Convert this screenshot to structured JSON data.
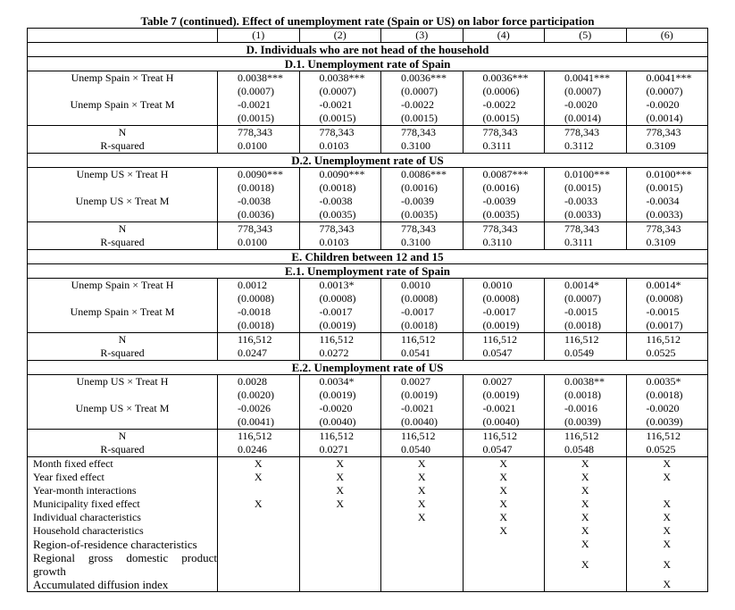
{
  "title": "Table 7 (continued). Effect of unemployment rate (Spain or US) on labor force participation",
  "columns": [
    "(1)",
    "(2)",
    "(3)",
    "(4)",
    "(5)",
    "(6)"
  ],
  "panels": [
    {
      "heading": "D. Individuals who are not head of the household",
      "blocks": [
        {
          "heading": "D.1. Unemployment rate of Spain",
          "coef_rows": [
            {
              "label": "Unemp Spain × Treat H",
              "coef": [
                "0.0038***",
                "0.0038***",
                "0.0036***",
                "0.0036***",
                "0.0041***",
                "0.0041***"
              ],
              "se": [
                "(0.0007)",
                "(0.0007)",
                "(0.0007)",
                "(0.0006)",
                "(0.0007)",
                "(0.0007)"
              ]
            },
            {
              "label": "Unemp Spain × Treat M",
              "coef": [
                "-0.0021",
                "-0.0021",
                "-0.0022",
                "-0.0022",
                "-0.0020",
                "-0.0020"
              ],
              "se": [
                "(0.0015)",
                "(0.0015)",
                "(0.0015)",
                "(0.0015)",
                "(0.0014)",
                "(0.0014)"
              ]
            }
          ],
          "stats": [
            {
              "label": "N",
              "values": [
                "778,343",
                "778,343",
                "778,343",
                "778,343",
                "778,343",
                "778,343"
              ]
            },
            {
              "label": "R-squared",
              "values": [
                "0.0100",
                "0.0103",
                "0.3100",
                "0.3111",
                "0.3112",
                "0.3109"
              ]
            }
          ]
        },
        {
          "heading": "D.2. Unemployment rate of US",
          "coef_rows": [
            {
              "label": "Unemp US × Treat H",
              "coef": [
                "0.0090***",
                "0.0090***",
                "0.0086***",
                "0.0087***",
                "0.0100***",
                "0.0100***"
              ],
              "se": [
                "(0.0018)",
                "(0.0018)",
                "(0.0016)",
                "(0.0016)",
                "(0.0015)",
                "(0.0015)"
              ]
            },
            {
              "label": "Unemp US × Treat M",
              "coef": [
                "-0.0038",
                "-0.0038",
                "-0.0039",
                "-0.0039",
                "-0.0033",
                "-0.0034"
              ],
              "se": [
                "(0.0036)",
                "(0.0035)",
                "(0.0035)",
                "(0.0035)",
                "(0.0033)",
                "(0.0033)"
              ]
            }
          ],
          "stats": [
            {
              "label": "N",
              "values": [
                "778,343",
                "778,343",
                "778,343",
                "778,343",
                "778,343",
                "778,343"
              ]
            },
            {
              "label": "R-squared",
              "values": [
                "0.0100",
                "0.0103",
                "0.3100",
                "0.3110",
                "0.3111",
                "0.3109"
              ]
            }
          ]
        }
      ]
    },
    {
      "heading": "E. Children between 12 and 15",
      "blocks": [
        {
          "heading": "E.1. Unemployment rate of Spain",
          "coef_rows": [
            {
              "label": "Unemp Spain × Treat H",
              "coef": [
                "0.0012",
                "0.0013*",
                "0.0010",
                "0.0010",
                "0.0014*",
                "0.0014*"
              ],
              "se": [
                "(0.0008)",
                "(0.0008)",
                "(0.0008)",
                "(0.0008)",
                "(0.0007)",
                "(0.0008)"
              ]
            },
            {
              "label": "Unemp Spain × Treat M",
              "coef": [
                "-0.0018",
                "-0.0017",
                "-0.0017",
                "-0.0017",
                "-0.0015",
                "-0.0015"
              ],
              "se": [
                "(0.0018)",
                "(0.0019)",
                "(0.0018)",
                "(0.0019)",
                "(0.0018)",
                "(0.0017)"
              ]
            }
          ],
          "stats": [
            {
              "label": "N",
              "values": [
                "116,512",
                "116,512",
                "116,512",
                "116,512",
                "116,512",
                "116,512"
              ]
            },
            {
              "label": "R-squared",
              "values": [
                "0.0247",
                "0.0272",
                "0.0541",
                "0.0547",
                "0.0549",
                "0.0525"
              ]
            }
          ]
        },
        {
          "heading": "E.2. Unemployment rate of US",
          "coef_rows": [
            {
              "label": "Unemp US × Treat H",
              "coef": [
                "0.0028",
                "0.0034*",
                "0.0027",
                "0.0027",
                "0.0038**",
                "0.0035*"
              ],
              "se": [
                "(0.0020)",
                "(0.0019)",
                "(0.0019)",
                "(0.0019)",
                "(0.0018)",
                "(0.0018)"
              ]
            },
            {
              "label": "Unemp US × Treat M",
              "coef": [
                "-0.0026",
                "-0.0020",
                "-0.0021",
                "-0.0021",
                "-0.0016",
                "-0.0020"
              ],
              "se": [
                "(0.0041)",
                "(0.0040)",
                "(0.0040)",
                "(0.0040)",
                "(0.0039)",
                "(0.0039)"
              ]
            }
          ],
          "stats": [
            {
              "label": "N",
              "values": [
                "116,512",
                "116,512",
                "116,512",
                "116,512",
                "116,512",
                "116,512"
              ]
            },
            {
              "label": "R-squared",
              "values": [
                "0.0246",
                "0.0271",
                "0.0540",
                "0.0547",
                "0.0548",
                "0.0525"
              ]
            }
          ]
        }
      ]
    }
  ],
  "controls": [
    {
      "label": "Month fixed effect",
      "marks": [
        "X",
        "X",
        "X",
        "X",
        "X",
        "X"
      ]
    },
    {
      "label": "Year fixed effect",
      "marks": [
        "X",
        "X",
        "X",
        "X",
        "X",
        "X"
      ]
    },
    {
      "label": "Year-month interactions",
      "marks": [
        null,
        "X",
        "X",
        "X",
        "X",
        null
      ]
    },
    {
      "label": "Municipality fixed effect",
      "marks": [
        "X",
        "X",
        "X",
        "X",
        "X",
        "X"
      ]
    },
    {
      "label": "Individual characteristics",
      "marks": [
        null,
        null,
        "X",
        "X",
        "X",
        "X"
      ]
    },
    {
      "label": "Household characteristics",
      "marks": [
        null,
        null,
        null,
        "X",
        "X",
        "X"
      ]
    },
    {
      "label": "Region-of-residence characteristics",
      "marks": [
        null,
        null,
        null,
        null,
        "X",
        "X"
      ]
    },
    {
      "label": "Regional gross domestic product growth",
      "marks": [
        null,
        null,
        null,
        null,
        "X",
        "X"
      ]
    },
    {
      "label": "Accumulated diffusion index",
      "marks": [
        null,
        null,
        null,
        null,
        null,
        "X"
      ]
    }
  ]
}
